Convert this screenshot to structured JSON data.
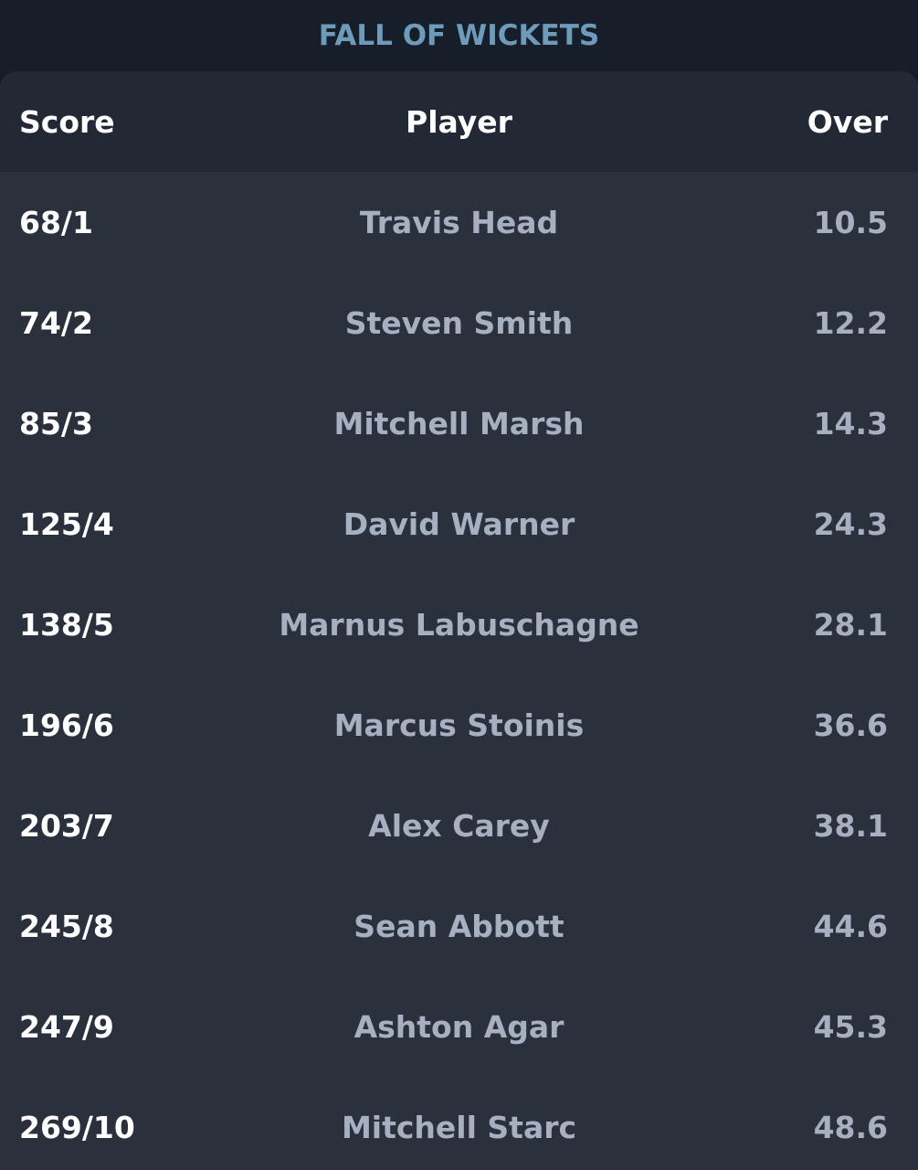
{
  "title": "FALL OF WICKETS",
  "columns": {
    "score": "Score",
    "player": "Player",
    "over": "Over"
  },
  "rows": [
    {
      "score": "68/1",
      "player": "Travis Head",
      "over": "10.5"
    },
    {
      "score": "74/2",
      "player": "Steven Smith",
      "over": "12.2"
    },
    {
      "score": "85/3",
      "player": "Mitchell Marsh",
      "over": "14.3"
    },
    {
      "score": "125/4",
      "player": "David Warner",
      "over": "24.3"
    },
    {
      "score": "138/5",
      "player": "Marnus Labuschagne",
      "over": "28.1"
    },
    {
      "score": "196/6",
      "player": "Marcus Stoinis",
      "over": "36.6"
    },
    {
      "score": "203/7",
      "player": "Alex Carey",
      "over": "38.1"
    },
    {
      "score": "245/8",
      "player": "Sean Abbott",
      "over": "44.6"
    },
    {
      "score": "247/9",
      "player": "Ashton Agar",
      "over": "45.3"
    },
    {
      "score": "269/10",
      "player": "Mitchell Starc",
      "over": "48.6"
    }
  ],
  "colors": {
    "background": "#151d29",
    "card": "#2a313d",
    "header": "#222935",
    "title": "#6f9bbb",
    "primary_text": "#ffffff",
    "secondary_text": "#a7b0c0"
  }
}
